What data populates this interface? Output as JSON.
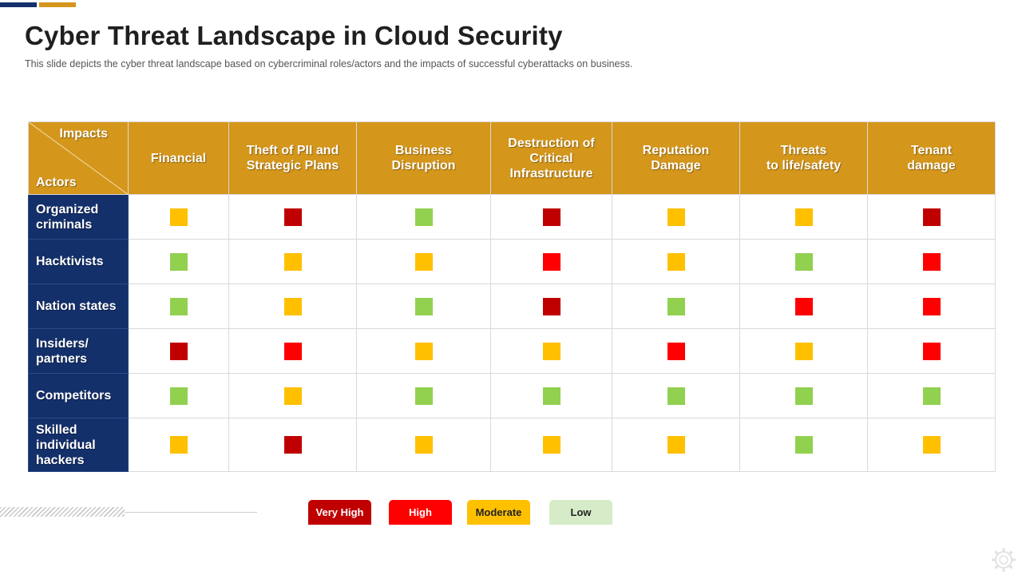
{
  "title": "Cyber Threat Landscape in Cloud Security",
  "subtitle": "This slide depicts the cyber threat landscape based on cybercriminal roles/actors and the impacts of successful cyberattacks on business.",
  "corner": {
    "impacts": "Impacts",
    "actors": "Actors"
  },
  "columns": [
    [
      "Financial"
    ],
    [
      "Theft of PII and",
      "Strategic Plans"
    ],
    [
      "Business",
      "Disruption"
    ],
    [
      "Destruction of",
      "Critical",
      "Infrastructure"
    ],
    [
      "Reputation",
      "Damage"
    ],
    [
      "Threats",
      "to life/safety"
    ],
    [
      "Tenant",
      "damage"
    ]
  ],
  "colors": {
    "very_high": "#c00000",
    "high": "#ff0000",
    "moderate": "#ffc000",
    "low": "#92d050"
  },
  "rows": [
    {
      "actor": [
        "Organized",
        "criminals"
      ],
      "levels": [
        "moderate",
        "very_high",
        "low",
        "very_high",
        "moderate",
        "moderate",
        "very_high"
      ]
    },
    {
      "actor": [
        "Hacktivists"
      ],
      "levels": [
        "low",
        "moderate",
        "moderate",
        "high",
        "moderate",
        "low",
        "high"
      ]
    },
    {
      "actor": [
        "Nation states"
      ],
      "levels": [
        "low",
        "moderate",
        "low",
        "very_high",
        "low",
        "high",
        "high"
      ]
    },
    {
      "actor": [
        "Insiders/",
        "partners"
      ],
      "levels": [
        "very_high",
        "high",
        "moderate",
        "moderate",
        "high",
        "moderate",
        "high"
      ]
    },
    {
      "actor": [
        "Competitors"
      ],
      "levels": [
        "low",
        "moderate",
        "low",
        "low",
        "low",
        "low",
        "low"
      ]
    },
    {
      "actor": [
        "Skilled",
        "individual",
        "hackers"
      ],
      "levels": [
        "moderate",
        "very_high",
        "moderate",
        "moderate",
        "moderate",
        "low",
        "moderate"
      ]
    }
  ],
  "legend": {
    "very_high": "Very High",
    "high": "High",
    "moderate": "Moderate",
    "low": "Low"
  },
  "icons": {
    "corner_logo": "gear-icon"
  }
}
